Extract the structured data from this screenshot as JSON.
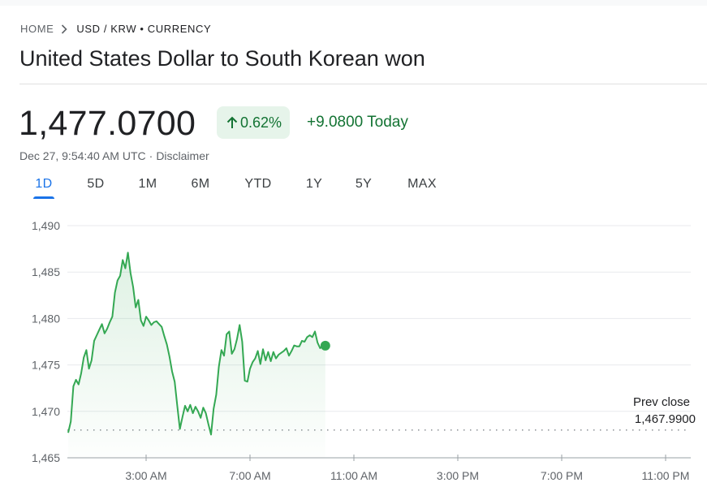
{
  "breadcrumb": {
    "home": "HOME",
    "current": "USD / KRW • CURRENCY"
  },
  "title": "United States Dollar to South Korean won",
  "quote": {
    "price": "1,477.0700",
    "change_percent": "0.62%",
    "change_abs": "+9.0800 Today",
    "timestamp": "Dec 27, 9:54:40 AM UTC",
    "disclaimer": "Disclaimer",
    "direction": "up"
  },
  "ranges": [
    "1D",
    "5D",
    "1M",
    "6M",
    "YTD",
    "1Y",
    "5Y",
    "MAX"
  ],
  "active_range": "1D",
  "colors": {
    "up": "#137333",
    "line": "#34a853",
    "accent": "#1a73e8"
  },
  "chart_data": {
    "type": "line",
    "y_ticks": [
      "1,490",
      "1,485",
      "1,480",
      "1,475",
      "1,470",
      "1,465"
    ],
    "ylim": [
      1465,
      1490
    ],
    "x_ticks": [
      "3:00 AM",
      "7:00 AM",
      "11:00 AM",
      "3:00 PM",
      "7:00 PM",
      "11:00 PM"
    ],
    "xlim_hours": [
      0,
      24
    ],
    "prev_close": {
      "label": "Prev close",
      "value": 1467.99,
      "value_text": "1,467.9900"
    },
    "series": [
      {
        "x": [
          0,
          0.1,
          0.2,
          0.3,
          0.4,
          0.5,
          0.6,
          0.7,
          0.8,
          0.9,
          1.0,
          1.1,
          1.2,
          1.3,
          1.4,
          1.5,
          1.6,
          1.7,
          1.8,
          1.9,
          2.0,
          2.1,
          2.2,
          2.3,
          2.4,
          2.5,
          2.6,
          2.7,
          2.8,
          2.9,
          3.0,
          3.1,
          3.2,
          3.3,
          3.4,
          3.5,
          3.6,
          3.7,
          3.8,
          3.9,
          4.0,
          4.1,
          4.2,
          4.3,
          4.4,
          4.5,
          4.6,
          4.7,
          4.8,
          4.9,
          5.0,
          5.1,
          5.2,
          5.3,
          5.4,
          5.5,
          5.6,
          5.7,
          5.8,
          5.9,
          6.0,
          6.1,
          6.2,
          6.3,
          6.4,
          6.5,
          6.6,
          6.7,
          6.8,
          6.9,
          7.0,
          7.1,
          7.2,
          7.3,
          7.4,
          7.5,
          7.6,
          7.7,
          7.8,
          7.9,
          8.0,
          8.1,
          8.2,
          8.3,
          8.4,
          8.5,
          8.6,
          8.7,
          8.8,
          8.9,
          9.0,
          9.1,
          9.2,
          9.3,
          9.4,
          9.5,
          9.6,
          9.7,
          9.8,
          9.9
        ],
        "y": [
          1467.7,
          1468.9,
          1472.7,
          1473.4,
          1472.9,
          1474.1,
          1475.8,
          1476.6,
          1474.6,
          1475.5,
          1477.6,
          1478.2,
          1478.8,
          1479.4,
          1478.4,
          1478.9,
          1479.6,
          1480.2,
          1482.8,
          1484.1,
          1484.6,
          1486.3,
          1485.4,
          1487.1,
          1484.9,
          1483.4,
          1481.2,
          1482.0,
          1479.8,
          1479.2,
          1480.2,
          1479.8,
          1479.3,
          1479.6,
          1479.7,
          1479.4,
          1479.1,
          1478.1,
          1477.2,
          1475.9,
          1474.3,
          1473.2,
          1470.6,
          1468.1,
          1469.4,
          1470.6,
          1470.0,
          1470.7,
          1469.8,
          1470.5,
          1470.0,
          1469.3,
          1470.4,
          1469.8,
          1468.6,
          1467.5,
          1470.3,
          1471.8,
          1474.8,
          1476.6,
          1476.0,
          1478.3,
          1478.6,
          1476.2,
          1476.7,
          1477.8,
          1479.3,
          1477.5,
          1473.3,
          1473.2,
          1474.6,
          1475.3,
          1475.7,
          1476.5,
          1475.1,
          1476.7,
          1475.5,
          1476.4,
          1475.4,
          1476.4,
          1475.7,
          1476.1,
          1476.3,
          1476.5,
          1476.8,
          1476.0,
          1476.5,
          1477.1,
          1477.0,
          1477.0,
          1477.6,
          1477.5,
          1478.0,
          1478.2,
          1478.0,
          1478.6,
          1477.4,
          1476.8,
          1477.1,
          1477.07
        ]
      }
    ],
    "last_point": {
      "x": 9.9,
      "y": 1477.07
    }
  }
}
